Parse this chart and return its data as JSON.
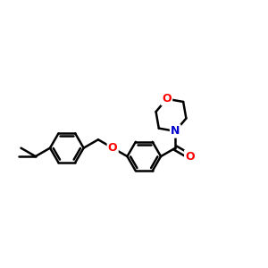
{
  "background_color": "#ffffff",
  "bond_color": "#000000",
  "oxygen_color": "#ff0000",
  "nitrogen_color": "#0000cc",
  "line_width": 1.8,
  "figsize": [
    3.0,
    3.0
  ],
  "dpi": 100,
  "xlim": [
    -2.9,
    1.8
  ],
  "ylim": [
    -0.9,
    1.6
  ]
}
